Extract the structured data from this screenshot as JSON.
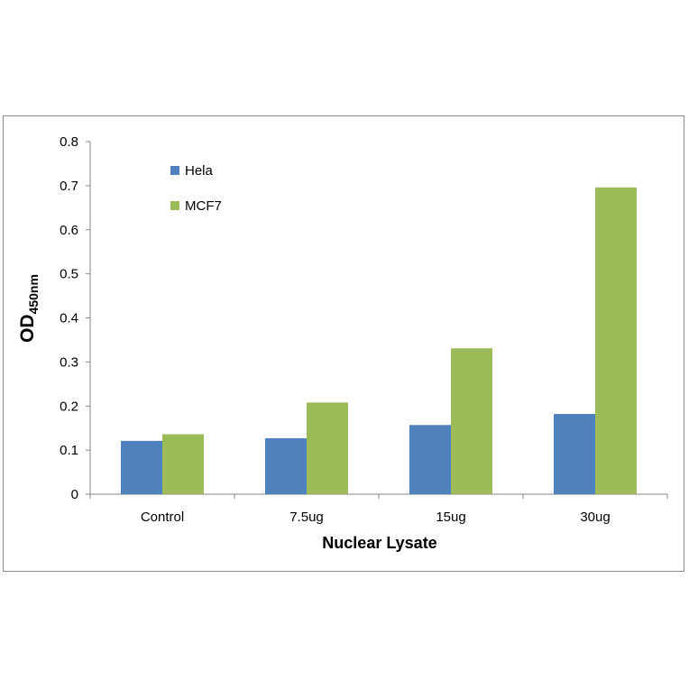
{
  "chart_data": {
    "type": "bar",
    "categories": [
      "Control",
      "7.5ug",
      "15ug",
      "30ug"
    ],
    "series": [
      {
        "name": "Hela",
        "values": [
          0.121,
          0.127,
          0.157,
          0.182
        ],
        "color": "#4f81bd"
      },
      {
        "name": "MCF7",
        "values": [
          0.136,
          0.208,
          0.331,
          0.696
        ],
        "color": "#9bbb59"
      }
    ],
    "title": "",
    "xlabel": "Nuclear Lysate",
    "ylabel_main": "OD",
    "ylabel_sub": "450nm",
    "ylim": [
      0,
      0.8
    ],
    "yticks": [
      "0",
      "0.1",
      "0.2",
      "0.3",
      "0.4",
      "0.5",
      "0.6",
      "0.7",
      "0.8"
    ],
    "grid": false,
    "legend_position": "top-left"
  }
}
